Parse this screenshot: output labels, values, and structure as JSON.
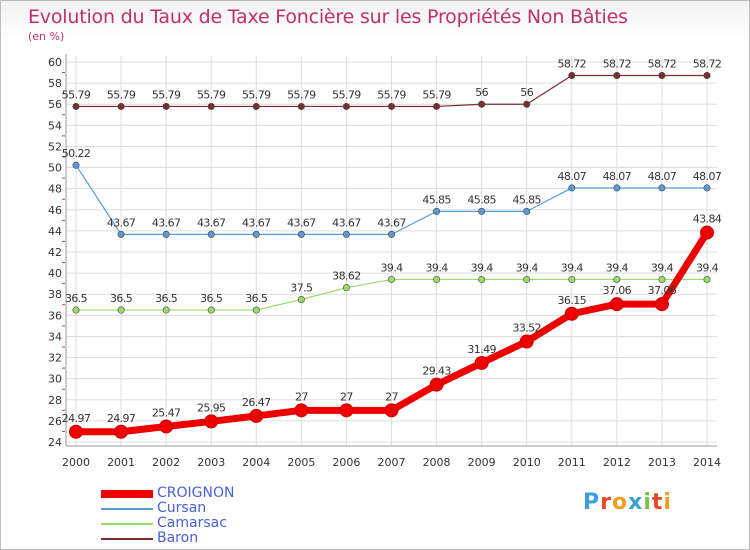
{
  "title": "Evolution du Taux de Taxe Foncière sur les Propriétés Non Bâties",
  "unit_label": "(en %)",
  "logo": {
    "text": "Proxiti",
    "letter_colors": [
      "#3aa0d8",
      "#e8472a",
      "#f0a020",
      "#3aa0d8",
      "#7cc242",
      "#e8472a",
      "#f0a020"
    ]
  },
  "chart_data": {
    "type": "line",
    "title": "Evolution du Taux de Taxe Foncière sur les Propriétés Non Bâties",
    "ylabel": "(en %)",
    "xlabel": "",
    "x": [
      "2000",
      "2001",
      "2002",
      "2003",
      "2004",
      "2005",
      "2006",
      "2007",
      "2008",
      "2009",
      "2010",
      "2011",
      "2012",
      "2013",
      "2014"
    ],
    "ylim": [
      24,
      60
    ],
    "yticks": [
      24,
      26,
      28,
      30,
      32,
      34,
      36,
      38,
      40,
      42,
      44,
      46,
      48,
      50,
      52,
      54,
      56,
      58,
      60
    ],
    "series": [
      {
        "name": "CROIGNON",
        "color": "#ee0000",
        "values": [
          24.97,
          24.97,
          25.47,
          25.95,
          26.47,
          27,
          27,
          27,
          29.43,
          31.49,
          33.52,
          36.15,
          37.06,
          37.06,
          43.84
        ],
        "labels": [
          "24.97",
          "24.97",
          "25.47",
          "25.95",
          "26.47",
          "27",
          "27",
          "27",
          "29.43",
          "31.49",
          "33.52",
          "36.15",
          "37.06",
          "37.06",
          "43.84"
        ]
      },
      {
        "name": "Cursan",
        "color": "#5b9bd5",
        "values": [
          50.22,
          43.67,
          43.67,
          43.67,
          43.67,
          43.67,
          43.67,
          43.67,
          45.85,
          45.85,
          45.85,
          48.07,
          48.07,
          48.07,
          48.07
        ],
        "labels": [
          "50.22",
          "43.67",
          "43.67",
          "43.67",
          "43.67",
          "43.67",
          "43.67",
          "43.67",
          "45.85",
          "45.85",
          "45.85",
          "48.07",
          "48.07",
          "48.07",
          "48.07"
        ]
      },
      {
        "name": "Camarsac",
        "color": "#99dd66",
        "values": [
          36.5,
          36.5,
          36.5,
          36.5,
          36.5,
          37.5,
          38.62,
          39.4,
          39.4,
          39.4,
          39.4,
          39.4,
          39.4,
          39.4,
          39.4
        ],
        "labels": [
          "36.5",
          "36.5",
          "36.5",
          "36.5",
          "36.5",
          "37.5",
          "38.62",
          "39.4",
          "39.4",
          "39.4",
          "39.4",
          "39.4",
          "39.4",
          "39.4",
          "39.4"
        ]
      },
      {
        "name": "Baron",
        "color": "#7a2e2e",
        "values": [
          55.79,
          55.79,
          55.79,
          55.79,
          55.79,
          55.79,
          55.79,
          55.79,
          55.79,
          56,
          56,
          58.72,
          58.72,
          58.72,
          58.72
        ],
        "labels": [
          "55.79",
          "55.79",
          "55.79",
          "55.79",
          "55.79",
          "55.79",
          "55.79",
          "55.79",
          "55.79",
          "56",
          "56",
          "58.72",
          "58.72",
          "58.72",
          "58.72"
        ]
      }
    ]
  }
}
